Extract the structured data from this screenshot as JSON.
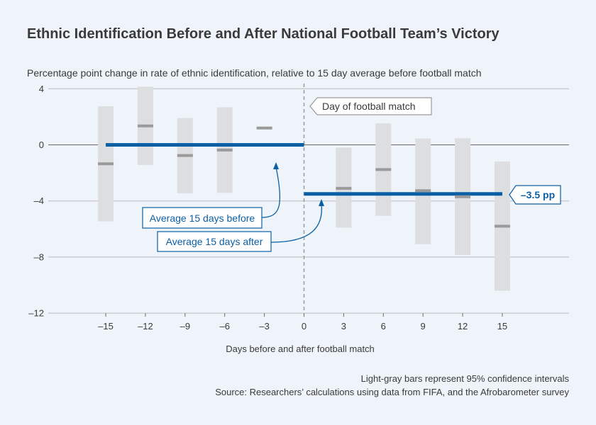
{
  "chart_data": {
    "type": "scatter",
    "title": "Ethnic Identification Before and After National Football Team’s Victory",
    "ylabel": "Percentage point change in rate of ethnic identification, relative to 15 day average before football match",
    "xlabel": "Days before and after football match",
    "xticks": [
      -15,
      -12,
      -9,
      -6,
      -3,
      0,
      3,
      6,
      9,
      12,
      15
    ],
    "xtick_labels": [
      "–15",
      "–12",
      "–9",
      "–6",
      "–3",
      "0",
      "3",
      "6",
      "9",
      "12",
      "15"
    ],
    "yticks": [
      4,
      0,
      -4,
      -8,
      -12
    ],
    "ytick_labels": [
      "4",
      "0",
      "–4",
      "–8",
      "–12"
    ],
    "ylim": [
      -12,
      4
    ],
    "grid": true,
    "points": [
      {
        "x": -15,
        "y": -1.35,
        "ci_low": -5.45,
        "ci_high": 2.75
      },
      {
        "x": -12,
        "y": 1.35,
        "ci_low": -1.43,
        "ci_high": 4.15
      },
      {
        "x": -9,
        "y": -0.76,
        "ci_low": -3.45,
        "ci_high": 1.91
      },
      {
        "x": -6,
        "y": -0.37,
        "ci_low": -3.42,
        "ci_high": 2.68
      },
      {
        "x": -3,
        "y": 1.2,
        "ci_low": null,
        "ci_high": null
      },
      {
        "x": 3,
        "y": -3.1,
        "ci_low": -5.9,
        "ci_high": -0.2
      },
      {
        "x": 6,
        "y": -1.76,
        "ci_low": -5.06,
        "ci_high": 1.53
      },
      {
        "x": 9,
        "y": -3.27,
        "ci_low": -7.08,
        "ci_high": 0.45
      },
      {
        "x": 12,
        "y": -3.7,
        "ci_low": -7.85,
        "ci_high": 0.47
      },
      {
        "x": 15,
        "y": -5.8,
        "ci_low": -10.4,
        "ci_high": -1.19
      }
    ],
    "averages": [
      {
        "label": "Average 15 days before",
        "x_start": -15,
        "x_end": 0,
        "y": 0
      },
      {
        "label": "Average 15 days after",
        "x_start": 0,
        "x_end": 15,
        "y": -3.5,
        "value_label": "–3.5 pp"
      }
    ],
    "event_label": "Day of football match",
    "notes": {
      "ci": "Light-gray bars represent 95% confidence intervals",
      "source": "Source: Researchers’ calculations using data from FIFA, and the Afrobarometer survey"
    },
    "colors": {
      "average": "#0b5fa5",
      "ci": "#dcdee0",
      "point": "#9a9a9a",
      "background": "#eef4fa"
    }
  }
}
